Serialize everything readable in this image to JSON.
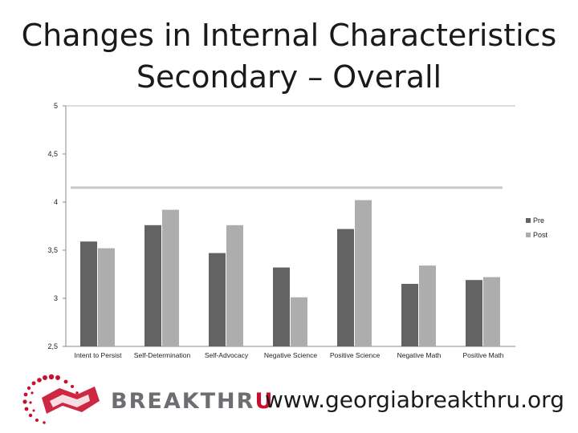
{
  "title_line1": "Changes in Internal Characteristics",
  "title_line2": "Secondary – Overall",
  "chart_data": {
    "type": "bar",
    "categories": [
      "Intent to Persist",
      "Self-Determination",
      "Self-Advocacy",
      "Negative Science",
      "Positive Science",
      "Negative Math",
      "Positive Math"
    ],
    "series": [
      {
        "name": "Pre",
        "color": "#636363",
        "values": [
          3.59,
          3.76,
          3.47,
          3.32,
          3.72,
          3.15,
          3.19
        ]
      },
      {
        "name": "Post",
        "color": "#adadad",
        "values": [
          3.52,
          3.92,
          3.76,
          3.01,
          4.02,
          3.34,
          3.22
        ]
      }
    ],
    "ylim": [
      2.5,
      5
    ],
    "yticks": [
      "2,5",
      "3",
      "3,5",
      "4",
      "4,5",
      "5"
    ],
    "ytick_values": [
      2.5,
      3,
      3.5,
      4,
      4.5,
      5
    ],
    "reference_line": 4.15,
    "legend": "right",
    "grid": false
  },
  "logo": {
    "text_main": "BREAKTHR",
    "text_accent": "U"
  },
  "url": "www.georgiabreakthru.org"
}
